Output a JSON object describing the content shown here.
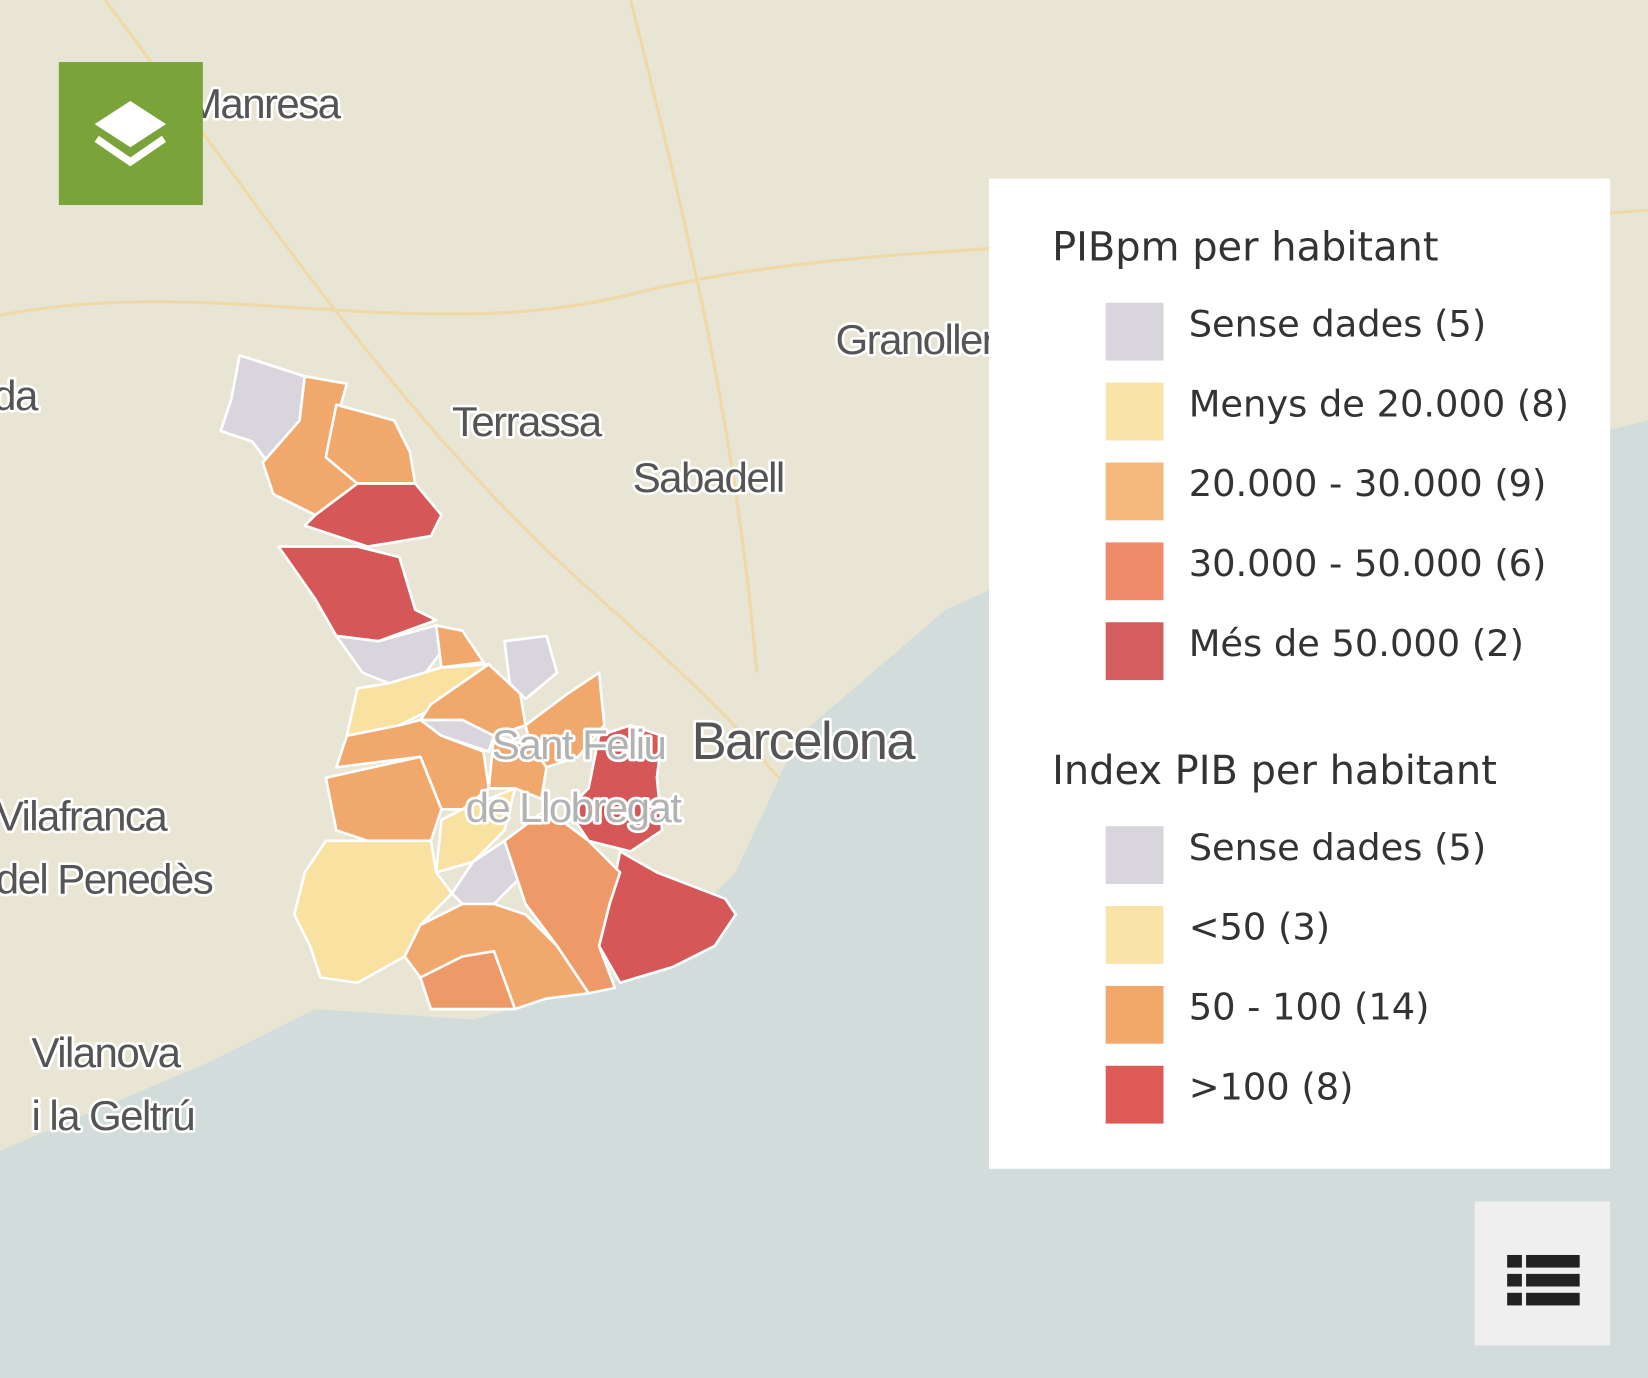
{
  "map": {
    "places": [
      [
        "Igualada"
      ],
      [
        "Manresa"
      ],
      [
        "Terrassa"
      ],
      [
        "Sabadell"
      ],
      [
        "Granollers"
      ],
      [
        "Barcelona"
      ],
      [
        "Sant Feliu",
        "de Llobregat"
      ],
      [
        "Vilafranca",
        "del Penedès"
      ],
      [
        "Vilanova",
        "i la Geltrú"
      ]
    ]
  },
  "legends": [
    {
      "title": "PIBpm per habitant",
      "items": [
        {
          "label": "Sense dades (5)",
          "color": "#d9d5dc"
        },
        {
          "label": "Menys de 20.000 (8)",
          "color": "#f9e3a6"
        },
        {
          "label": "20.000 - 30.000 (9)",
          "color": "#f5b87d"
        },
        {
          "label": "30.000 - 50.000 (6)",
          "color": "#ef8a6b"
        },
        {
          "label": "Més de 50.000 (2)",
          "color": "#d45d5f"
        }
      ]
    },
    {
      "title": "Index PIB per habitant",
      "items": [
        {
          "label": "Sense dades (5)",
          "color": "#d9d5dc"
        },
        {
          "label": "<50 (3)",
          "color": "#f9e3a6"
        },
        {
          "label": "50 - 100 (14)",
          "color": "#f2a76b"
        },
        {
          "label": ">100 (8)",
          "color": "#dd5a57"
        }
      ]
    }
  ]
}
